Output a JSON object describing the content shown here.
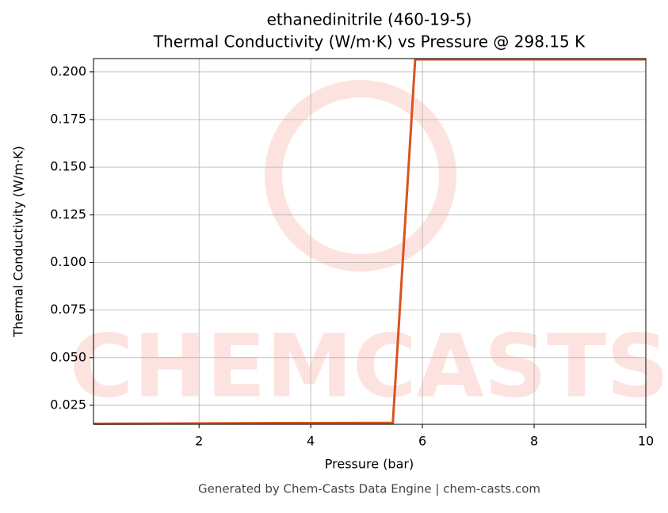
{
  "chart_data": {
    "type": "line",
    "title": "ethanedinitrile (460-19-5)",
    "subtitle": "Thermal Conductivity (W/m·K) vs Pressure @ 298.15 K",
    "x_label": "Pressure (bar)",
    "y_label": "Thermal Conductivity (W/m·K)",
    "watermark": "CHEMCASTS",
    "footer": "Generated by Chem-Casts Data Engine | chem-casts.com",
    "x": [
      0.11,
      5.47,
      5.87,
      10
    ],
    "series": [
      {
        "name": "Thermal Conductivity",
        "color": "#d9531e",
        "values": [
          0.0153,
          0.0158,
          0.2066,
          0.2066
        ]
      }
    ],
    "xlim": [
      0.11,
      10
    ],
    "xticks": [
      2,
      4,
      6,
      8,
      10
    ],
    "ylim": [
      0.015,
      0.207
    ],
    "yticks": [
      {
        "value": 0.025,
        "label": "0.025"
      },
      {
        "value": 0.05,
        "label": "0.050"
      },
      {
        "value": 0.075,
        "label": "0.075"
      },
      {
        "value": 0.1,
        "label": "0.100"
      },
      {
        "value": 0.125,
        "label": "0.125"
      },
      {
        "value": 0.15,
        "label": "0.150"
      },
      {
        "value": 0.175,
        "label": "0.175"
      },
      {
        "value": 0.2,
        "label": "0.200"
      }
    ],
    "grid": true
  }
}
